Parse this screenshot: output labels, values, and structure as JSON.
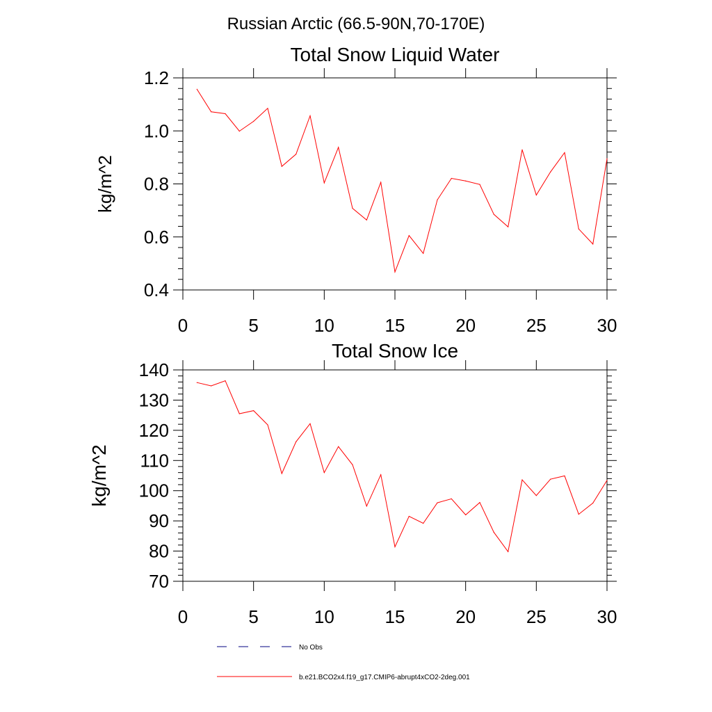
{
  "figure": {
    "title": "Russian Arctic (66.5-90N,70-170E)"
  },
  "chart_data": [
    {
      "type": "line",
      "title": "Total Snow Liquid Water",
      "ylabel": "kg/m^2",
      "xlim": [
        0,
        30
      ],
      "ylim": [
        0.4,
        1.2
      ],
      "xticks": [
        0,
        5,
        10,
        15,
        20,
        25,
        30
      ],
      "xtick_labels": [
        "0",
        "5",
        "10",
        "15",
        "20",
        "25",
        "30"
      ],
      "yticks": [
        0.4,
        0.6,
        0.8,
        1.0,
        1.2
      ],
      "ytick_labels": [
        "0.4",
        "0.6",
        "0.8",
        "1.0",
        "1.2"
      ],
      "series": [
        {
          "name": "b.e21.BCO2x4.f19_g17.CMIP6-abrupt4xCO2-2deg.001",
          "color": "#ff0000",
          "x": [
            1,
            2,
            3,
            4,
            5,
            6,
            7,
            8,
            9,
            10,
            11,
            12,
            13,
            14,
            15,
            16,
            17,
            18,
            19,
            20,
            21,
            22,
            23,
            24,
            25,
            26,
            27,
            28,
            29,
            30
          ],
          "values": [
            1.157,
            1.072,
            1.065,
            0.999,
            1.036,
            1.085,
            0.866,
            0.912,
            1.057,
            0.804,
            0.938,
            0.708,
            0.664,
            0.806,
            0.468,
            0.605,
            0.538,
            0.74,
            0.821,
            0.811,
            0.798,
            0.685,
            0.638,
            0.929,
            0.758,
            0.845,
            0.918,
            0.63,
            0.573,
            0.895
          ]
        }
      ]
    },
    {
      "type": "line",
      "title": "Total Snow Ice",
      "ylabel": "kg/m^2",
      "xlim": [
        0,
        30
      ],
      "ylim": [
        70,
        140
      ],
      "xticks": [
        0,
        5,
        10,
        15,
        20,
        25,
        30
      ],
      "xtick_labels": [
        "0",
        "5",
        "10",
        "15",
        "20",
        "25",
        "30"
      ],
      "yticks": [
        70,
        80,
        90,
        100,
        110,
        120,
        130,
        140
      ],
      "ytick_labels": [
        "70",
        "80",
        "90",
        "100",
        "110",
        "120",
        "130",
        "140"
      ],
      "series": [
        {
          "name": "b.e21.BCO2x4.f19_g17.CMIP6-abrupt4xCO2-2deg.001",
          "color": "#ff0000",
          "x": [
            1,
            2,
            3,
            4,
            5,
            6,
            7,
            8,
            9,
            10,
            11,
            12,
            13,
            14,
            15,
            16,
            17,
            18,
            19,
            20,
            21,
            22,
            23,
            24,
            25,
            26,
            27,
            28,
            29,
            30
          ],
          "values": [
            135.8,
            134.7,
            136.4,
            125.5,
            126.5,
            121.8,
            105.7,
            116.2,
            122.2,
            106.0,
            114.6,
            108.6,
            94.9,
            105.3,
            81.4,
            91.5,
            89.2,
            96.0,
            97.3,
            92.0,
            96.1,
            86.2,
            79.8,
            103.6,
            98.4,
            103.8,
            104.9,
            92.2,
            95.9,
            103.4
          ]
        }
      ]
    }
  ],
  "legend": {
    "placement": "bottom",
    "items": [
      {
        "label": "No Obs",
        "color": "#000080",
        "style": "dashed"
      },
      {
        "label": "b.e21.BCO2x4.f19_g17.CMIP6-abrupt4xCO2-2deg.001",
        "color": "#ff0000",
        "style": "solid"
      }
    ]
  }
}
